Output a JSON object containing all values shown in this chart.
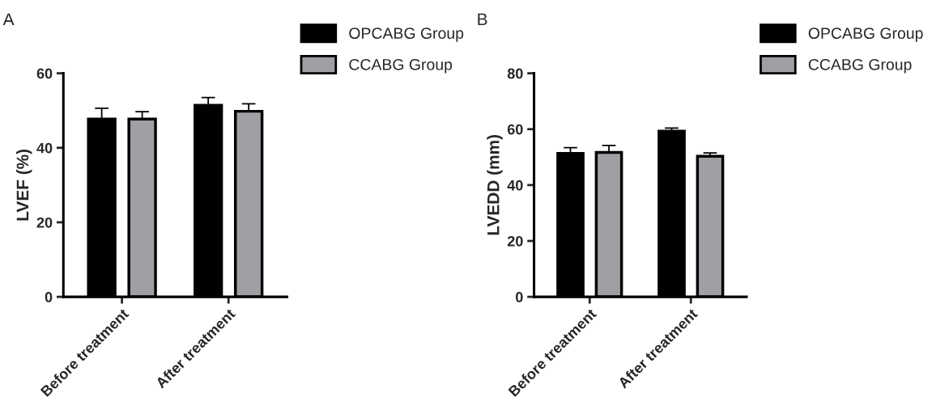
{
  "chart_data": [
    {
      "type": "bar",
      "title": "A",
      "ylabel": "LVEF (%)",
      "categories": [
        "Before treatment",
        "After treatment"
      ],
      "ylim": [
        0,
        60
      ],
      "yticks": [
        0,
        20,
        40,
        60
      ],
      "legend": "top right",
      "series": [
        {
          "name": "OPCABG Group",
          "color": "#000000",
          "values": [
            47.7,
            51.4
          ],
          "errors": [
            [
              47.7,
              50.6
            ],
            [
              51.4,
              53.5
            ]
          ]
        },
        {
          "name": "CCABG Group",
          "color": "#a0a0a4",
          "values": [
            47.7,
            49.8
          ],
          "errors": [
            [
              47.7,
              49.7
            ],
            [
              49.8,
              51.8
            ]
          ]
        }
      ]
    },
    {
      "type": "bar",
      "title": "B",
      "ylabel": "LVEDD (mm)",
      "categories": [
        "Before treatment",
        "After treatment"
      ],
      "ylim": [
        0,
        80
      ],
      "yticks": [
        0,
        20,
        40,
        60,
        80
      ],
      "legend": "top right",
      "series": [
        {
          "name": "OPCABG Group",
          "color": "#000000",
          "values": [
            51.3,
            59.3
          ],
          "errors": [
            [
              51.3,
              53.4
            ],
            [
              59.3,
              60.4
            ]
          ]
        },
        {
          "name": "CCABG Group",
          "color": "#a0a0a4",
          "values": [
            51.7,
            50.3
          ],
          "errors": [
            [
              51.7,
              54.2
            ],
            [
              50.3,
              51.5
            ]
          ]
        }
      ]
    }
  ]
}
